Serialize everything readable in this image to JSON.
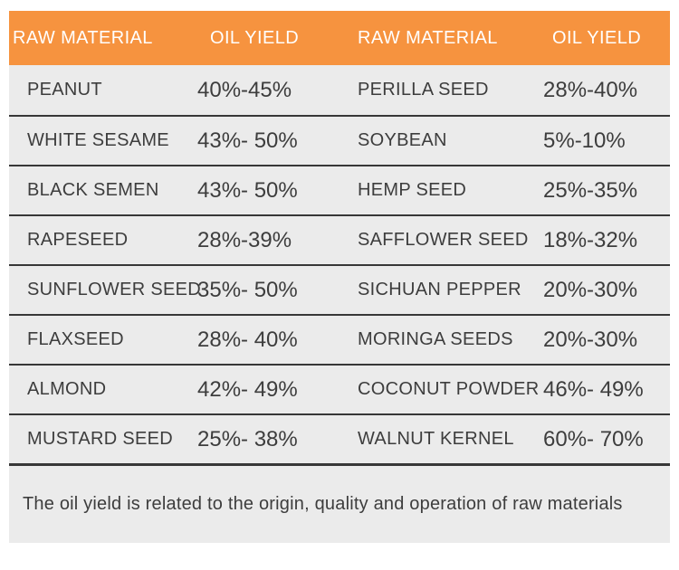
{
  "colors": {
    "header_bg": "#F6933F",
    "header_text": "#FFFFFF",
    "row_bg": "#EBEBEB",
    "divider": "#373737",
    "text": "#3D3D3D",
    "page_bg": "#FFFFFF"
  },
  "header": {
    "columns": [
      "RAW MATERIAL",
      "OIL YIELD",
      "RAW MATERIAL",
      "OIL YIELD"
    ]
  },
  "rows": [
    {
      "material_left": "PEANUT",
      "yield_left": "40%-45%",
      "material_right": "PERILLA SEED",
      "yield_right": "28%-40%"
    },
    {
      "material_left": "WHITE SESAME",
      "yield_left": "43%- 50%",
      "material_right": "SOYBEAN",
      "yield_right": "5%-10%"
    },
    {
      "material_left": "BLACK SEMEN",
      "yield_left": "43%- 50%",
      "material_right": "HEMP SEED",
      "yield_right": "25%-35%"
    },
    {
      "material_left": "RAPESEED",
      "yield_left": "28%-39%",
      "material_right": "SAFFLOWER SEED",
      "yield_right": "18%-32%"
    },
    {
      "material_left": "SUNFLOWER SEED",
      "yield_left": "35%- 50%",
      "material_right": "SICHUAN PEPPER",
      "yield_right": "20%-30%"
    },
    {
      "material_left": "FLAXSEED",
      "yield_left": "28%- 40%",
      "material_right": "MORINGA SEEDS",
      "yield_right": "20%-30%"
    },
    {
      "material_left": "ALMOND",
      "yield_left": "42%- 49%",
      "material_right": "COCONUT POWDER",
      "yield_right": "46%- 49%"
    },
    {
      "material_left": "MUSTARD SEED",
      "yield_left": "25%- 38%",
      "material_right": "WALNUT KERNEL",
      "yield_right": "60%- 70%"
    }
  ],
  "footer": {
    "note": "The oil yield is related to the origin, quality and operation of raw materials"
  },
  "chart_data": {
    "type": "table",
    "title": "",
    "columns": [
      "RAW MATERIAL",
      "OIL YIELD",
      "RAW MATERIAL",
      "OIL YIELD"
    ],
    "rows": [
      [
        "PEANUT",
        "40%-45%",
        "PERILLA SEED",
        "28%-40%"
      ],
      [
        "WHITE SESAME",
        "43%- 50%",
        "SOYBEAN",
        "5%-10%"
      ],
      [
        "BLACK SEMEN",
        "43%- 50%",
        "HEMP SEED",
        "25%-35%"
      ],
      [
        "RAPESEED",
        "28%-39%",
        "SAFFLOWER SEED",
        "18%-32%"
      ],
      [
        "SUNFLOWER SEED",
        "35%- 50%",
        "SICHUAN PEPPER",
        "20%-30%"
      ],
      [
        "FLAXSEED",
        "28%- 40%",
        "MORINGA SEEDS",
        "20%-30%"
      ],
      [
        "ALMOND",
        "42%- 49%",
        "COCONUT POWDER",
        "46%- 49%"
      ],
      [
        "MUSTARD SEED",
        "25%- 38%",
        "WALNUT KERNEL",
        "60%- 70%"
      ]
    ],
    "materials": [
      {
        "name": "PEANUT",
        "oil_yield_min_pct": 40,
        "oil_yield_max_pct": 45
      },
      {
        "name": "WHITE SESAME",
        "oil_yield_min_pct": 43,
        "oil_yield_max_pct": 50
      },
      {
        "name": "BLACK SEMEN",
        "oil_yield_min_pct": 43,
        "oil_yield_max_pct": 50
      },
      {
        "name": "RAPESEED",
        "oil_yield_min_pct": 28,
        "oil_yield_max_pct": 39
      },
      {
        "name": "SUNFLOWER SEED",
        "oil_yield_min_pct": 35,
        "oil_yield_max_pct": 50
      },
      {
        "name": "FLAXSEED",
        "oil_yield_min_pct": 28,
        "oil_yield_max_pct": 40
      },
      {
        "name": "ALMOND",
        "oil_yield_min_pct": 42,
        "oil_yield_max_pct": 49
      },
      {
        "name": "MUSTARD SEED",
        "oil_yield_min_pct": 25,
        "oil_yield_max_pct": 38
      },
      {
        "name": "PERILLA SEED",
        "oil_yield_min_pct": 28,
        "oil_yield_max_pct": 40
      },
      {
        "name": "SOYBEAN",
        "oil_yield_min_pct": 5,
        "oil_yield_max_pct": 10
      },
      {
        "name": "HEMP SEED",
        "oil_yield_min_pct": 25,
        "oil_yield_max_pct": 35
      },
      {
        "name": "SAFFLOWER SEED",
        "oil_yield_min_pct": 18,
        "oil_yield_max_pct": 32
      },
      {
        "name": "SICHUAN PEPPER",
        "oil_yield_min_pct": 20,
        "oil_yield_max_pct": 30
      },
      {
        "name": "MORINGA SEEDS",
        "oil_yield_min_pct": 20,
        "oil_yield_max_pct": 30
      },
      {
        "name": "COCONUT POWDER",
        "oil_yield_min_pct": 46,
        "oil_yield_max_pct": 49
      },
      {
        "name": "WALNUT KERNEL",
        "oil_yield_min_pct": 60,
        "oil_yield_max_pct": 70
      }
    ],
    "footnote": "The oil yield is related to the origin, quality and operation of raw materials",
    "layout": {
      "grid": "two material/yield column pairs",
      "header_color": "#F6933F",
      "row_color": "#EBEBEB"
    }
  }
}
